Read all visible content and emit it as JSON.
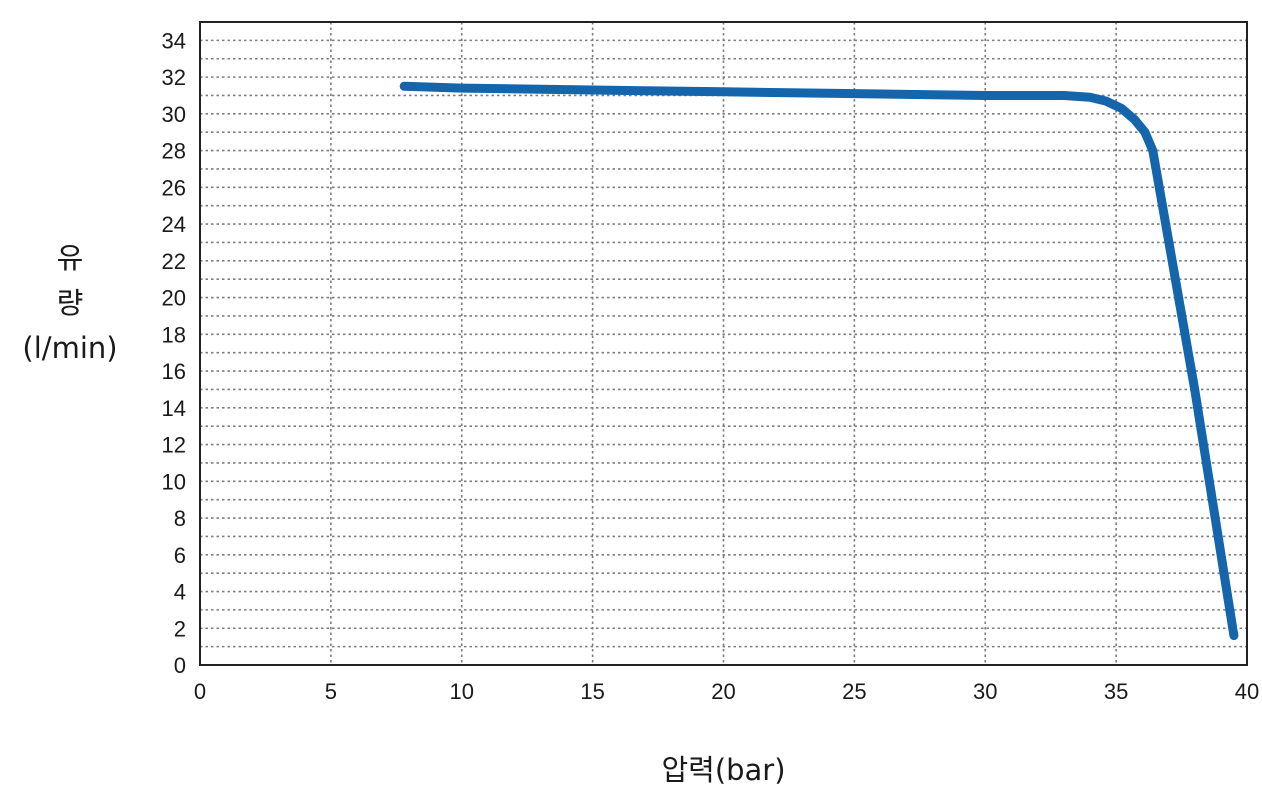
{
  "chart_data": {
    "type": "line",
    "title": "",
    "xlabel": "압력(bar)",
    "ylabel_lines": [
      "유",
      "량",
      "(l/min)"
    ],
    "xlim": [
      0,
      40
    ],
    "ylim": [
      0,
      35
    ],
    "x_ticks": [
      0,
      5,
      10,
      15,
      20,
      25,
      30,
      35,
      40
    ],
    "y_ticks": [
      0,
      2,
      4,
      6,
      8,
      10,
      12,
      14,
      16,
      18,
      20,
      22,
      24,
      26,
      28,
      30,
      32,
      34
    ],
    "grid": true,
    "series": [
      {
        "color": "#1565ad",
        "x": [
          7.8,
          10,
          15,
          20,
          25,
          30,
          33,
          34,
          34.6,
          35.2,
          35.7,
          36.1,
          36.4,
          38,
          39.5
        ],
        "y": [
          31.5,
          31.4,
          31.3,
          31.2,
          31.1,
          31.0,
          31.0,
          30.9,
          30.7,
          30.3,
          29.7,
          29.0,
          28.0,
          15.0,
          1.6
        ]
      }
    ]
  }
}
